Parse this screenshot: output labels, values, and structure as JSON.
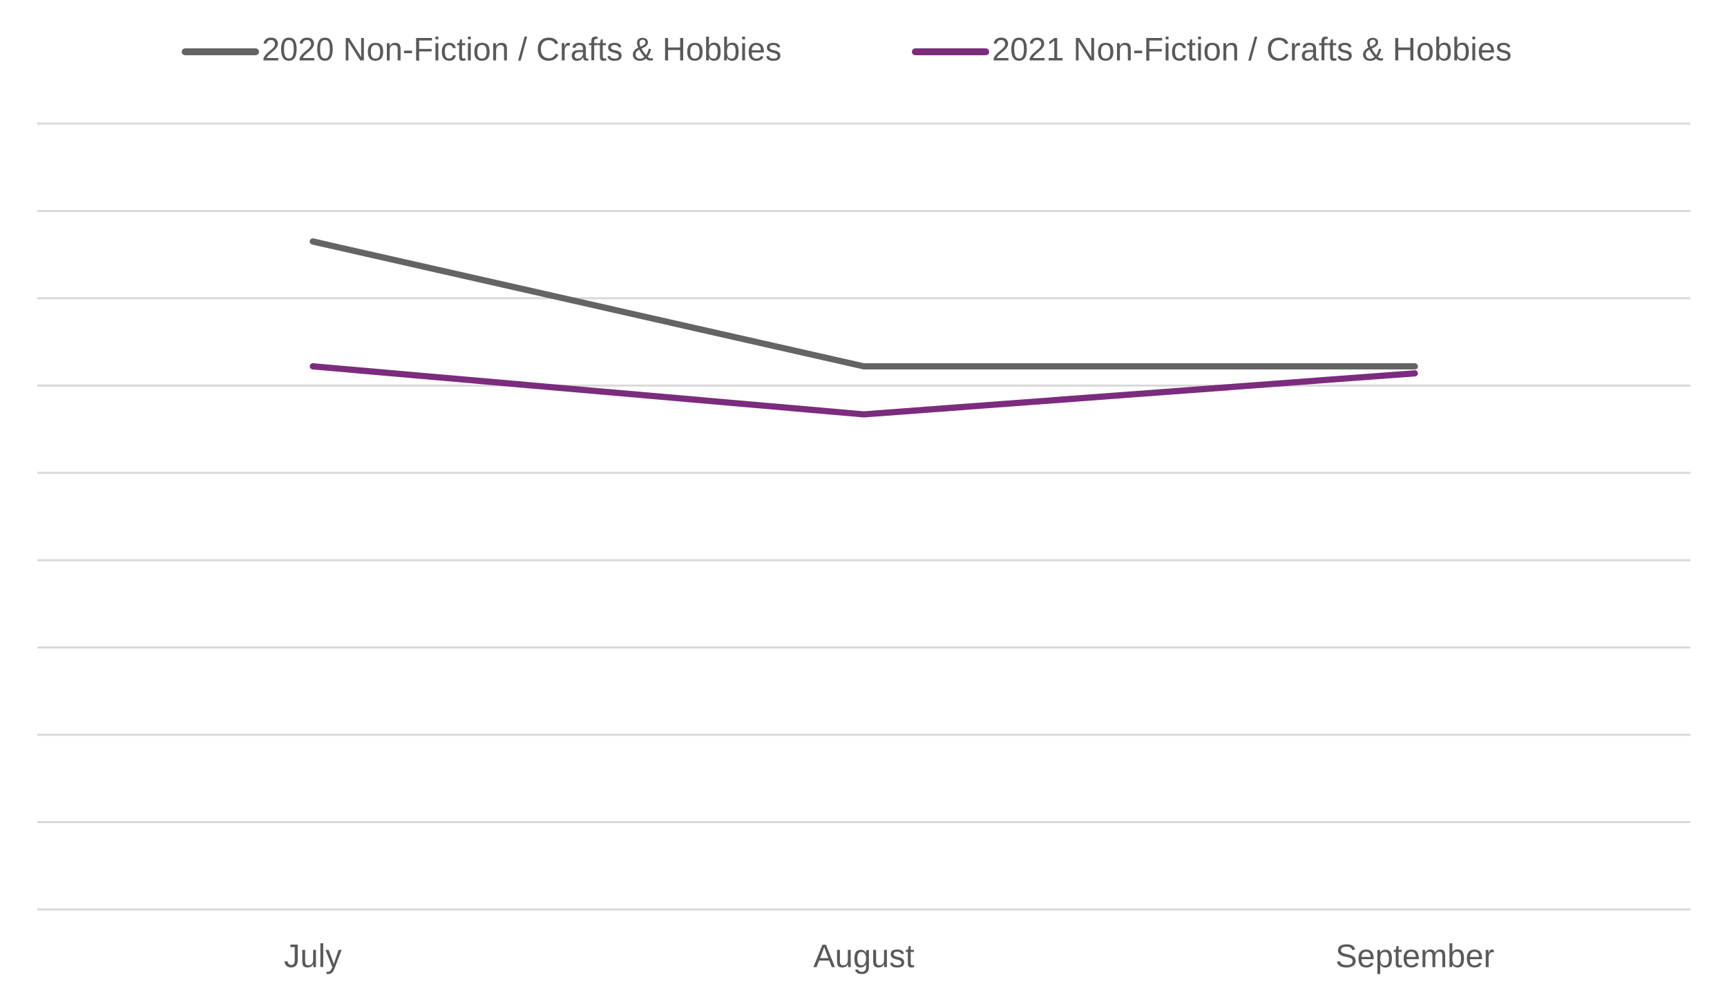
{
  "chart_data": {
    "type": "line",
    "categories": [
      "July",
      "August",
      "September"
    ],
    "series": [
      {
        "name": "2020 Non-Fiction / Crafts & Hobbies",
        "color": "#646464",
        "values": [
          7.65,
          6.22,
          6.22
        ]
      },
      {
        "name": "2021 Non-Fiction / Crafts & Hobbies",
        "color": "#7b2c7d",
        "values": [
          6.22,
          5.67,
          6.14
        ]
      }
    ],
    "ylim": [
      0,
      9
    ],
    "yticks": [
      0,
      1,
      2,
      3,
      4,
      5,
      6,
      7,
      8,
      9
    ],
    "show_ytick_labels": false,
    "grid": true,
    "legend": "top"
  }
}
